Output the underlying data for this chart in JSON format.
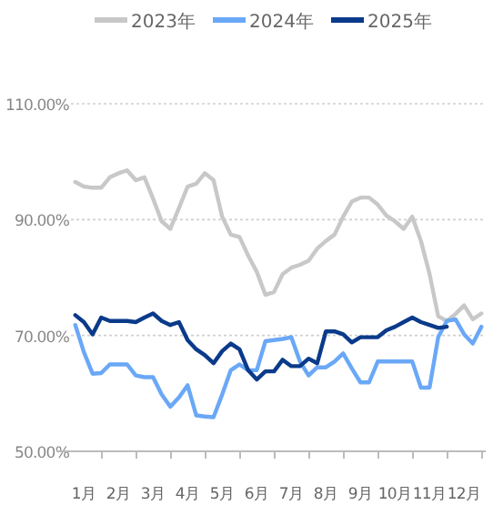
{
  "chart_data": {
    "type": "line",
    "categories": [
      null,
      "1月",
      null,
      null,
      null,
      "2月",
      null,
      null,
      null,
      "3月",
      null,
      null,
      null,
      "4月",
      null,
      null,
      null,
      "5月",
      null,
      null,
      null,
      "6月",
      null,
      null,
      null,
      "7月",
      null,
      null,
      null,
      "8月",
      null,
      null,
      null,
      "9月",
      null,
      null,
      null,
      "10月",
      null,
      null,
      null,
      "11月",
      null,
      null,
      null,
      "12月",
      null,
      null
    ],
    "series": [
      {
        "name": "2023年",
        "color": "#c8c8c8",
        "values": [
          96.5,
          95.7,
          95.5,
          95.5,
          97.3,
          98,
          98.5,
          96.8,
          97.3,
          93.6,
          89.7,
          88.4,
          92,
          95.7,
          96.2,
          98,
          96.8,
          90.5,
          87.4,
          87,
          83.8,
          81,
          77,
          77.5,
          80.6,
          81.7,
          82.2,
          82.9,
          85,
          86.3,
          87.4,
          90.5,
          93.1,
          93.8,
          93.8,
          92.6,
          90.7,
          89.7,
          88.4,
          90.5,
          86.3,
          80.6,
          73.3,
          72.5,
          73.7,
          75.2,
          72.8,
          73.8
        ]
      },
      {
        "name": "2024年",
        "color": "#6aa8f7",
        "values": [
          71.8,
          67.1,
          63.4,
          63.5,
          65,
          65,
          65,
          63.1,
          62.8,
          62.8,
          59.8,
          57.7,
          59.3,
          61.4,
          56.2,
          56,
          55.9,
          59.8,
          64,
          65,
          64,
          64,
          69,
          69.2,
          69.4,
          69.7,
          65.5,
          63.1,
          64.5,
          64.5,
          65.5,
          66.9,
          64.3,
          61.9,
          61.9,
          65.5,
          65.5,
          65.5,
          65.5,
          65.5,
          61,
          61,
          69.7,
          72.5,
          72.8,
          70.2,
          68.6,
          71.5
        ]
      },
      {
        "name": "2025年",
        "color": "#0a3a8a",
        "values": [
          73.5,
          72.3,
          70.2,
          73.1,
          72.5,
          72.5,
          72.5,
          72.3,
          73.1,
          73.8,
          72.5,
          71.8,
          72.3,
          69.2,
          67.6,
          66.6,
          65.2,
          67.3,
          68.6,
          67.6,
          64,
          62.4,
          63.8,
          63.8,
          65.8,
          64.7,
          64.7,
          66,
          65.2,
          70.7,
          70.7,
          70.2,
          68.8,
          69.7,
          69.7,
          69.7,
          70.9,
          71.5,
          72.3,
          73.1,
          72.3,
          71.8,
          71.3,
          71.5,
          null,
          null,
          null,
          null
        ]
      }
    ],
    "ylim": [
      50,
      110
    ],
    "yticks": [
      {
        "value": 50,
        "label": "50.00%"
      },
      {
        "value": 70,
        "label": "70.00%"
      },
      {
        "value": 90,
        "label": "90.00%"
      },
      {
        "value": 110,
        "label": "110.00%"
      }
    ],
    "grid": "y",
    "legend": "top",
    "line_style": "solid",
    "marker": "none"
  }
}
